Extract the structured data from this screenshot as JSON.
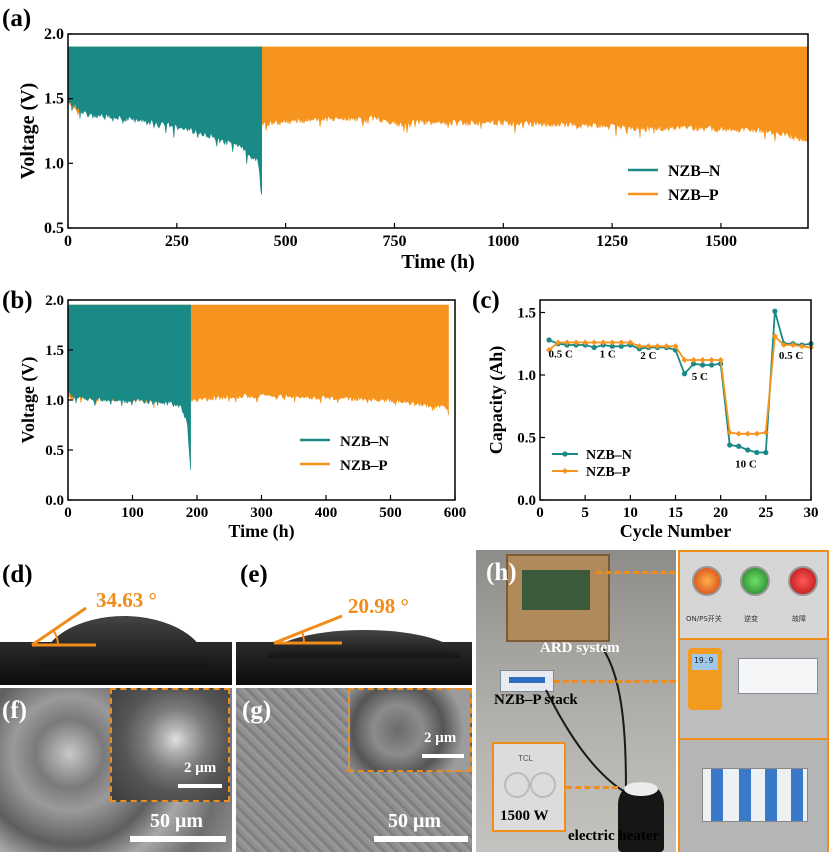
{
  "colors": {
    "nzb_n": "#1a8a87",
    "nzb_p": "#f7941d",
    "accent_orange": "#f08c1a",
    "axis": "#000000"
  },
  "chart_data": [
    {
      "panel": "(a)",
      "type": "line",
      "xlabel": "Time (h)",
      "ylabel": "Voltage (V)",
      "xlim": [
        0,
        1700
      ],
      "ylim": [
        0.5,
        2.0
      ],
      "xticks": [
        0,
        250,
        500,
        750,
        1000,
        1250,
        1500
      ],
      "yticks": [
        0.5,
        1.0,
        1.5,
        2.0
      ],
      "ytick_labels": [
        "0.5",
        "1.0",
        "1.5",
        "2.0"
      ],
      "legend": "bottom-right",
      "series": [
        {
          "name": "NZB–N",
          "charge_voltage": 1.9,
          "x": [
            0,
            20,
            50,
            100,
            150,
            200,
            250,
            300,
            330,
            350,
            380,
            400,
            420,
            435,
            440,
            445
          ],
          "discharge_min": [
            1.52,
            1.45,
            1.4,
            1.38,
            1.36,
            1.34,
            1.31,
            1.27,
            1.24,
            1.2,
            1.18,
            1.15,
            1.08,
            1.05,
            0.95,
            0.8
          ]
        },
        {
          "name": "NZB–P",
          "charge_voltage": 1.9,
          "x": [
            0,
            20,
            50,
            100,
            200,
            300,
            445,
            500,
            600,
            700,
            750,
            800,
            900,
            1000,
            1100,
            1200,
            1300,
            1400,
            1500,
            1600,
            1650,
            1700
          ],
          "discharge_min": [
            1.5,
            1.44,
            1.42,
            1.42,
            1.42,
            1.42,
            1.33,
            1.35,
            1.37,
            1.38,
            1.33,
            1.35,
            1.34,
            1.34,
            1.33,
            1.32,
            1.3,
            1.3,
            1.29,
            1.28,
            1.25,
            1.2
          ]
        }
      ]
    },
    {
      "panel": "(b)",
      "type": "line",
      "xlabel": "Time (h)",
      "ylabel": "Voltage (V)",
      "xlim": [
        0,
        600
      ],
      "ylim": [
        0.0,
        2.0
      ],
      "xticks": [
        0,
        100,
        200,
        300,
        400,
        500,
        600
      ],
      "yticks": [
        0.0,
        0.5,
        1.0,
        1.5,
        2.0
      ],
      "ytick_labels": [
        "0.0",
        "0.5",
        "1.0",
        "1.5",
        "2.0"
      ],
      "legend": "bottom-right",
      "series": [
        {
          "name": "NZB–N",
          "charge_voltage": 1.95,
          "x": [
            0,
            10,
            50,
            100,
            150,
            175,
            185,
            190
          ],
          "discharge_min": [
            1.1,
            1.05,
            1.03,
            1.02,
            1.0,
            0.97,
            0.8,
            0.32
          ]
        },
        {
          "name": "NZB–P",
          "charge_voltage": 1.95,
          "x": [
            0,
            190,
            200,
            250,
            300,
            350,
            400,
            450,
            500,
            550,
            590
          ],
          "discharge_min": [
            1.05,
            1.02,
            1.03,
            1.06,
            1.07,
            1.06,
            1.05,
            1.04,
            1.02,
            0.98,
            0.94
          ]
        }
      ]
    },
    {
      "panel": "(c)",
      "type": "line",
      "xlabel": "Cycle Number",
      "ylabel": "Capacity (Ah)",
      "xlim": [
        0,
        30
      ],
      "ylim": [
        0.0,
        1.6
      ],
      "xticks": [
        0,
        5,
        10,
        15,
        20,
        25,
        30
      ],
      "yticks": [
        0.0,
        0.5,
        1.0,
        1.5
      ],
      "ytick_labels": [
        "0.0",
        "0.5",
        "1.0",
        "1.5"
      ],
      "legend": "bottom-left",
      "annotations": [
        {
          "text": "0.5 C",
          "x": 2.3,
          "y": 1.14
        },
        {
          "text": "1 C",
          "x": 7.5,
          "y": 1.14
        },
        {
          "text": "2 C",
          "x": 12.0,
          "y": 1.13
        },
        {
          "text": "5 C",
          "x": 17.7,
          "y": 0.96
        },
        {
          "text": "10 C",
          "x": 22.8,
          "y": 0.26
        },
        {
          "text": "0.5 C",
          "x": 27.8,
          "y": 1.13
        }
      ],
      "series": [
        {
          "name": "NZB–N",
          "x": [
            1,
            2,
            3,
            4,
            5,
            6,
            7,
            8,
            9,
            10,
            11,
            12,
            13,
            14,
            15,
            16,
            17,
            18,
            19,
            20,
            21,
            22,
            23,
            24,
            25,
            26,
            27,
            28,
            29,
            30
          ],
          "values": [
            1.28,
            1.25,
            1.24,
            1.24,
            1.24,
            1.22,
            1.24,
            1.23,
            1.23,
            1.24,
            1.21,
            1.22,
            1.22,
            1.22,
            1.2,
            1.01,
            1.09,
            1.08,
            1.08,
            1.09,
            0.44,
            0.43,
            0.4,
            0.38,
            0.38,
            1.51,
            1.25,
            1.25,
            1.24,
            1.25
          ]
        },
        {
          "name": "NZB–P",
          "x": [
            1,
            2,
            3,
            4,
            5,
            6,
            7,
            8,
            9,
            10,
            11,
            12,
            13,
            14,
            15,
            16,
            17,
            18,
            19,
            20,
            21,
            22,
            23,
            24,
            25,
            26,
            27,
            28,
            29,
            30
          ],
          "values": [
            1.2,
            1.26,
            1.26,
            1.26,
            1.26,
            1.26,
            1.26,
            1.26,
            1.26,
            1.26,
            1.23,
            1.23,
            1.23,
            1.23,
            1.23,
            1.12,
            1.12,
            1.12,
            1.12,
            1.12,
            0.54,
            0.53,
            0.53,
            0.53,
            0.54,
            1.31,
            1.24,
            1.24,
            1.23,
            1.22
          ]
        }
      ]
    }
  ],
  "panels": {
    "d": {
      "label": "(d)",
      "angle": "34.63 °"
    },
    "e": {
      "label": "(e)",
      "angle": "20.98 °"
    },
    "f": {
      "label": "(f)",
      "inset_scale": "2 μm",
      "scale": "50 μm"
    },
    "g": {
      "label": "(g)",
      "inset_scale": "2 μm",
      "scale": "50 μm"
    },
    "h": {
      "label": "(h)",
      "ard": "ARD system",
      "stack": "NZB–P stack",
      "power": "1500 W",
      "heater": "electric heater",
      "brand": "TCL",
      "display": "19.9",
      "switch_labels": [
        "ON/PS开关",
        "逆变",
        "故障"
      ]
    }
  }
}
